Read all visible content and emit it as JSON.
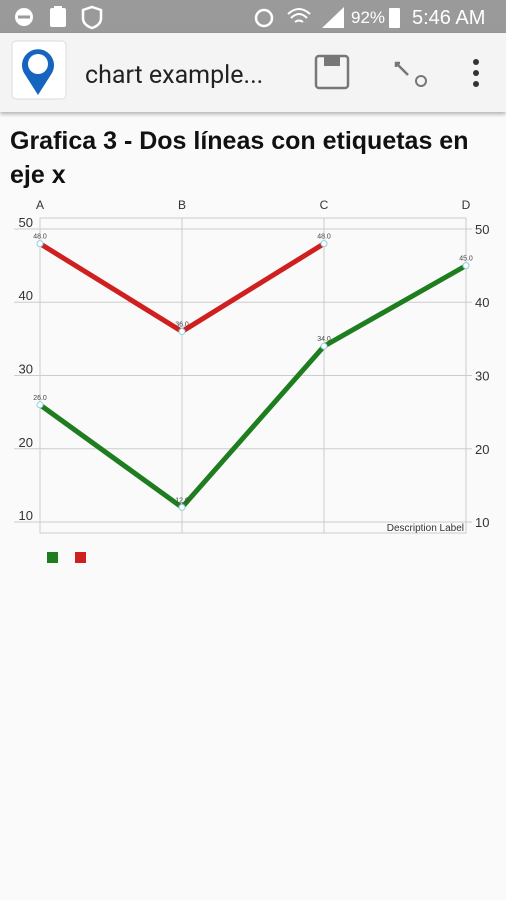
{
  "status_bar": {
    "battery": "92%",
    "time": "5:46 AM"
  },
  "app_bar": {
    "title": "chart example..."
  },
  "chart_data": {
    "type": "line",
    "title": "Grafica 3 - Dos líneas con etiquetas en eje x",
    "xlabel": "Description Label",
    "categories": [
      "A",
      "B",
      "C",
      "D"
    ],
    "series": [
      {
        "color": "#1e7d1e",
        "values": [
          26,
          12,
          34,
          45
        ],
        "value_labels": [
          "26.0",
          "12.0",
          "34.0",
          "45.0"
        ]
      },
      {
        "color": "#d01f1f",
        "values": [
          48,
          36,
          48,
          null
        ],
        "value_labels": [
          "48.0",
          "36.0",
          "48.0",
          null
        ]
      }
    ],
    "ylim": [
      8.5,
      51.5
    ],
    "yticks": [
      10,
      20,
      30,
      40,
      50
    ],
    "y2lim": [
      8.5,
      51.5
    ],
    "y2ticks": [
      10,
      20,
      30,
      40,
      50
    ],
    "grid": true
  }
}
